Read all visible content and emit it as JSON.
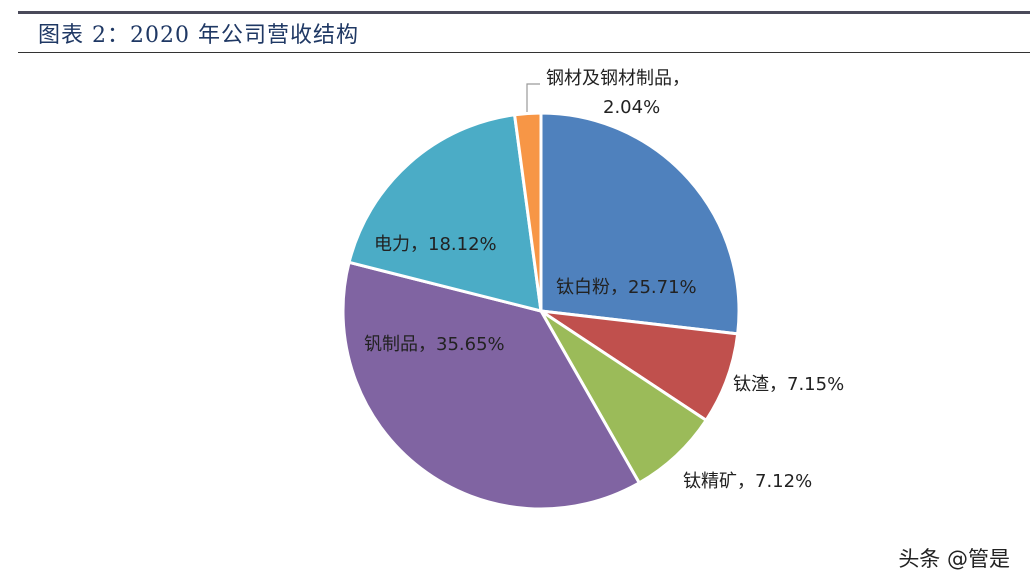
{
  "title": "图表 2：2020 年公司营收结构",
  "watermark": "头条 @管是",
  "chart_data": {
    "type": "pie",
    "title": "图表 2：2020 年公司营收结构",
    "slices": [
      {
        "name": "钛白粉",
        "value": 25.71,
        "label": "钛白粉，25.71%",
        "color": "#4f81bd"
      },
      {
        "name": "钛渣",
        "value": 7.15,
        "label": "钛渣，7.15%",
        "color": "#c0504d"
      },
      {
        "name": "钛精矿",
        "value": 7.12,
        "label": "钛精矿，7.12%",
        "color": "#9bbb59"
      },
      {
        "name": "钒制品",
        "value": 35.65,
        "label": "钒制品，35.65%",
        "color": "#8064a2"
      },
      {
        "name": "电力",
        "value": 18.12,
        "label": "电力，18.12%",
        "color": "#4bacc6"
      },
      {
        "name": "钢材及钢材制品",
        "value": 2.04,
        "label_line1": "钢材及钢材制品，",
        "label_line2": "2.04%",
        "color": "#f79646"
      }
    ],
    "start_angle": "12 o'clock",
    "direction": "clockwise",
    "legend": "none"
  }
}
